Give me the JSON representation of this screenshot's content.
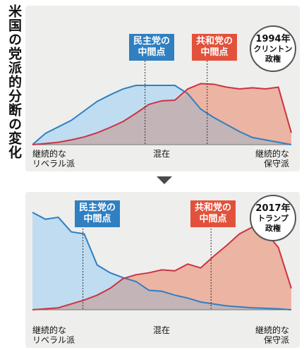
{
  "page_title": "米国の党派的分断の変化",
  "colors": {
    "democrat": "#2f7fc1",
    "democrat_fill": "#bfdcf1",
    "republican": "#cc3344",
    "republican_fill": "#ecb4a2",
    "overlap_fill": "#c3b4b7",
    "panel_bg": "#eeeeec"
  },
  "chart_data": [
    {
      "type": "area",
      "badge_year": "1994年",
      "badge_name": "クリントン\n政権",
      "dem_label": "民主党の\n中間点",
      "rep_label": "共和党の\n中間点",
      "x_labels": [
        "継続的な\nリベラル派",
        "混在",
        "継続的な\n保守派"
      ],
      "x": [
        0,
        1,
        2,
        3,
        4,
        5,
        6,
        7,
        8,
        9,
        10,
        11,
        12,
        13,
        14,
        15,
        16,
        17,
        18,
        19,
        20
      ],
      "dem_median": 8.7,
      "rep_median": 13.5,
      "ylim": [
        0,
        1
      ],
      "series": [
        {
          "party": "democrat",
          "values": [
            0.0,
            0.19,
            0.3,
            0.41,
            0.57,
            0.73,
            0.84,
            0.94,
            1.0,
            1.0,
            1.0,
            1.0,
            0.86,
            0.6,
            0.46,
            0.34,
            0.22,
            0.12,
            0.08,
            0.04,
            0.0
          ]
        },
        {
          "party": "republican",
          "values": [
            0.0,
            0.02,
            0.04,
            0.08,
            0.13,
            0.2,
            0.29,
            0.39,
            0.53,
            0.68,
            0.74,
            0.75,
            0.94,
            1.03,
            1.02,
            0.97,
            0.94,
            0.96,
            0.94,
            0.97,
            0.2
          ]
        }
      ]
    },
    {
      "type": "area",
      "badge_year": "2017年",
      "badge_name": "トランプ\n政権",
      "dem_label": "民主党の\n中間点",
      "rep_label": "共和党の\n中間点",
      "x_labels": [
        "継続的な\nリベラル派",
        "混在",
        "継続的な\n保守派"
      ],
      "x": [
        0,
        1,
        2,
        3,
        4,
        5,
        6,
        7,
        8,
        9,
        10,
        11,
        12,
        13,
        14,
        15,
        16,
        17,
        18,
        19,
        20
      ],
      "dem_median": 3.9,
      "rep_median": 13.8,
      "ylim": [
        0,
        1
      ],
      "series": [
        {
          "party": "democrat",
          "values": [
            1.0,
            0.93,
            0.95,
            0.8,
            0.78,
            0.46,
            0.38,
            0.33,
            0.29,
            0.2,
            0.19,
            0.15,
            0.12,
            0.08,
            0.06,
            0.04,
            0.03,
            0.02,
            0.015,
            0.01,
            0.0
          ]
        },
        {
          "party": "republican",
          "values": [
            0.0,
            0.01,
            0.02,
            0.06,
            0.1,
            0.15,
            0.22,
            0.32,
            0.36,
            0.38,
            0.41,
            0.4,
            0.47,
            0.43,
            0.55,
            0.66,
            0.78,
            0.85,
            0.8,
            0.64,
            0.22
          ]
        }
      ]
    }
  ]
}
